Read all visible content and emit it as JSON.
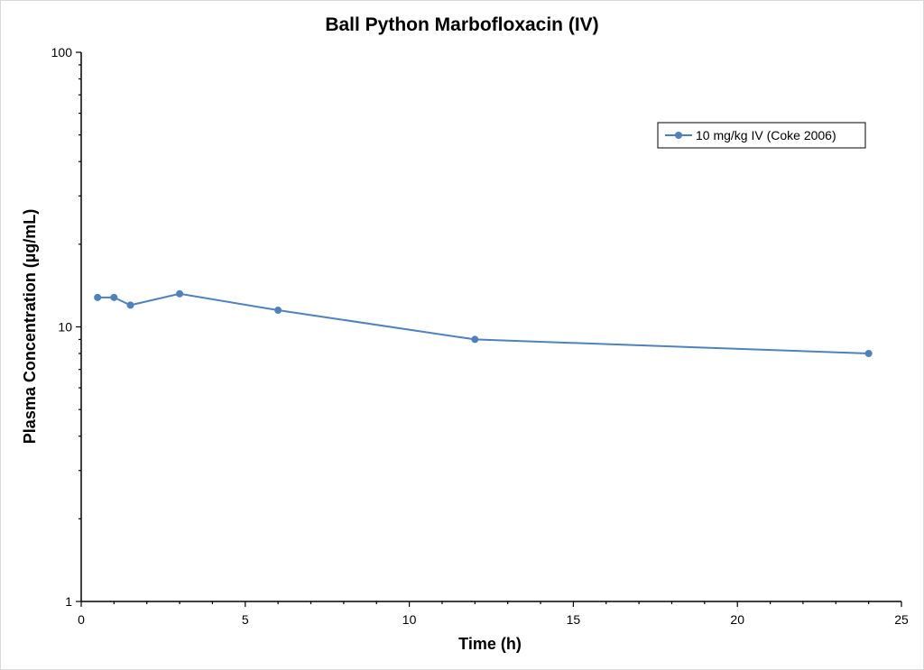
{
  "chart_data": {
    "type": "line",
    "title": "Ball Python Marbofloxacin (IV)",
    "xlabel": "Time (h)",
    "ylabel": "Plasma Concentration (µg/mL)",
    "xlim": [
      0,
      25
    ],
    "ylim": [
      1,
      100
    ],
    "yscale": "log",
    "x_ticks": [
      0,
      5,
      10,
      15,
      20,
      25
    ],
    "x_tick_labels": [
      "0",
      "5",
      "10",
      "15",
      "20",
      "25"
    ],
    "y_ticks": [
      1,
      10,
      100
    ],
    "y_tick_labels": [
      "1",
      "10",
      "100"
    ],
    "grid": false,
    "legend_position": "top-right",
    "series": [
      {
        "name": "10 mg/kg IV (Coke 2006)",
        "color": "#4f81bd",
        "x": [
          0.5,
          1,
          1.5,
          3,
          6,
          12,
          24
        ],
        "y": [
          12.8,
          12.8,
          12.0,
          13.2,
          11.5,
          9.0,
          8.0
        ]
      }
    ]
  }
}
